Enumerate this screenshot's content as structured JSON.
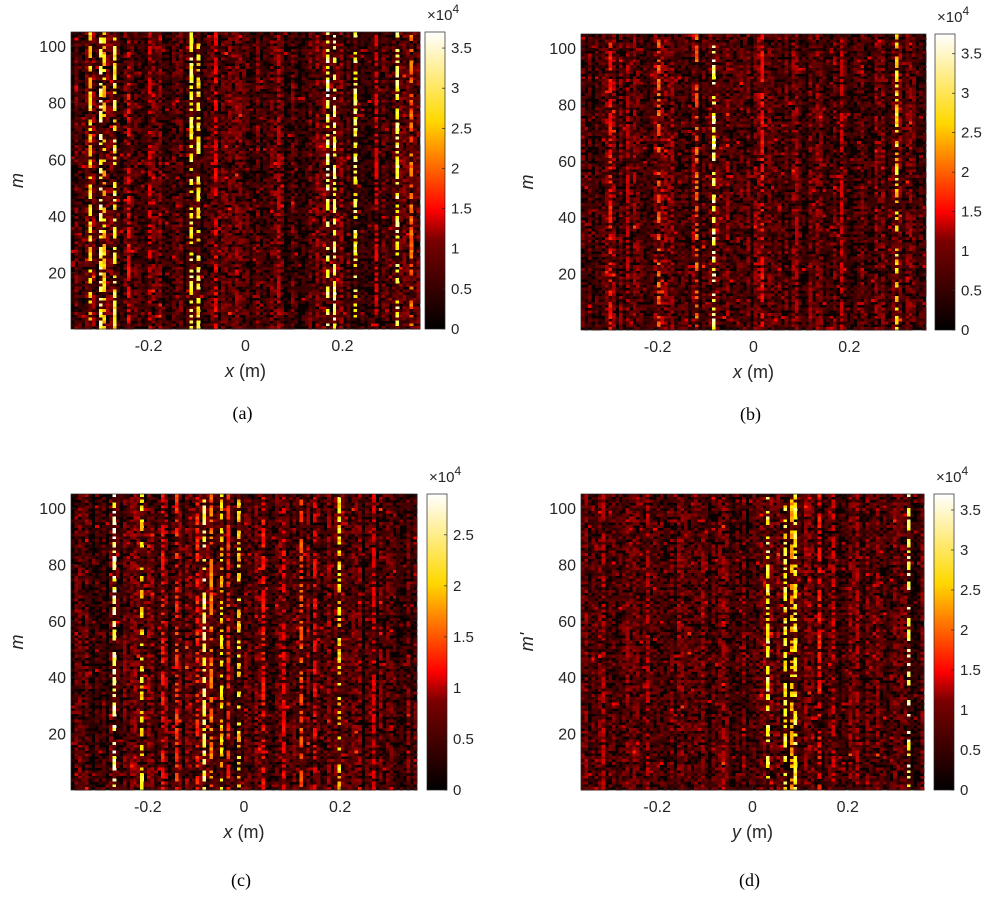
{
  "chart_data": [
    {
      "type": "heatmap",
      "caption": "(a)",
      "xlabel_var": "x",
      "xlabel_unit": " (m)",
      "ylabel": "m",
      "xlim": [
        -0.36,
        0.36
      ],
      "ylim": [
        0,
        105
      ],
      "xticks": [
        -0.2,
        0,
        0.2
      ],
      "xtick_labels": [
        "-0.2",
        "0",
        "0.2"
      ],
      "yticks": [
        20,
        40,
        60,
        80,
        100
      ],
      "ytick_labels": [
        "20",
        "40",
        "60",
        "80",
        "100"
      ],
      "colorbar": {
        "range": [
          0,
          3.7
        ],
        "ticks": [
          0,
          0.5,
          1,
          1.5,
          2,
          2.5,
          3,
          3.5
        ],
        "tick_labels": [
          "0",
          "0.5",
          "1",
          "1.5",
          "2",
          "2.5",
          "3",
          "3.5"
        ],
        "multiplier_base": "×10",
        "multiplier_exp": "4"
      },
      "colormap": "hot",
      "grid": false,
      "bright_columns": [
        {
          "x": -0.32,
          "level": 3.0
        },
        {
          "x": -0.3,
          "level": 3.6
        },
        {
          "x": -0.29,
          "level": 2.8
        },
        {
          "x": -0.27,
          "level": 3.3
        },
        {
          "x": -0.11,
          "level": 3.4
        },
        {
          "x": -0.1,
          "level": 3.2
        },
        {
          "x": 0.17,
          "level": 3.7
        },
        {
          "x": 0.18,
          "level": 3.6
        },
        {
          "x": 0.23,
          "level": 3.4
        },
        {
          "x": 0.31,
          "level": 3.5
        },
        {
          "x": 0.34,
          "level": 2.2
        },
        {
          "x": -0.24,
          "level": 1.6
        },
        {
          "x": -0.2,
          "level": 1.4
        },
        {
          "x": -0.06,
          "level": 1.5
        },
        {
          "x": 0.07,
          "level": 1.2
        },
        {
          "x": 0.27,
          "level": 1.4
        }
      ]
    },
    {
      "type": "heatmap",
      "caption": "(b)",
      "xlabel_var": "x",
      "xlabel_unit": " (m)",
      "ylabel": "m",
      "xlim": [
        -0.36,
        0.36
      ],
      "ylim": [
        0,
        105
      ],
      "xticks": [
        -0.2,
        0,
        0.2
      ],
      "xtick_labels": [
        "-0.2",
        "0",
        "0.2"
      ],
      "yticks": [
        20,
        40,
        60,
        80,
        100
      ],
      "ytick_labels": [
        "20",
        "40",
        "60",
        "80",
        "100"
      ],
      "colorbar": {
        "range": [
          0,
          3.75
        ],
        "ticks": [
          0,
          0.5,
          1,
          1.5,
          2,
          2.5,
          3,
          3.5
        ],
        "tick_labels": [
          "0",
          "0.5",
          "1",
          "1.5",
          "2",
          "2.5",
          "3",
          "3.5"
        ],
        "multiplier_base": "×10",
        "multiplier_exp": "4"
      },
      "colormap": "hot",
      "grid": false,
      "bright_columns": [
        {
          "x": -0.3,
          "level": 1.7
        },
        {
          "x": -0.2,
          "level": 2.2
        },
        {
          "x": -0.12,
          "level": 2.2
        },
        {
          "x": -0.08,
          "level": 3.75
        },
        {
          "x": 0.02,
          "level": 1.6
        },
        {
          "x": 0.18,
          "level": 1.3
        },
        {
          "x": 0.3,
          "level": 3.1
        },
        {
          "x": -0.26,
          "level": 1.2
        },
        {
          "x": 0.09,
          "level": 1.1
        }
      ]
    },
    {
      "type": "heatmap",
      "caption": "(c)",
      "xlabel_var": "x",
      "xlabel_unit": " (m)",
      "ylabel": "m",
      "xlim": [
        -0.36,
        0.36
      ],
      "ylim": [
        0,
        105
      ],
      "xticks": [
        -0.2,
        0,
        0.2
      ],
      "xtick_labels": [
        "-0.2",
        "0",
        "0.2"
      ],
      "yticks": [
        20,
        40,
        60,
        80,
        100
      ],
      "ytick_labels": [
        "20",
        "40",
        "60",
        "80",
        "100"
      ],
      "colorbar": {
        "range": [
          0,
          2.9
        ],
        "ticks": [
          0,
          0.5,
          1,
          1.5,
          2,
          2.5
        ],
        "tick_labels": [
          "0",
          "0.5",
          "1",
          "1.5",
          "2",
          "2.5"
        ],
        "multiplier_base": "×10",
        "multiplier_exp": "4"
      },
      "colormap": "hot",
      "grid": false,
      "bright_columns": [
        {
          "x": -0.27,
          "level": 2.9
        },
        {
          "x": -0.21,
          "level": 2.4
        },
        {
          "x": -0.17,
          "level": 1.3
        },
        {
          "x": -0.14,
          "level": 1.5
        },
        {
          "x": -0.1,
          "level": 1.4
        },
        {
          "x": -0.08,
          "level": 2.8
        },
        {
          "x": -0.07,
          "level": 1.8
        },
        {
          "x": -0.05,
          "level": 2.3
        },
        {
          "x": -0.03,
          "level": 1.4
        },
        {
          "x": -0.01,
          "level": 2.3
        },
        {
          "x": 0.04,
          "level": 1.3
        },
        {
          "x": 0.08,
          "level": 1.2
        },
        {
          "x": 0.12,
          "level": 1.6
        },
        {
          "x": 0.15,
          "level": 1.2
        },
        {
          "x": 0.2,
          "level": 2.4
        },
        {
          "x": 0.27,
          "level": 1.1
        }
      ]
    },
    {
      "type": "heatmap",
      "caption": "(d)",
      "xlabel_var": "y",
      "xlabel_unit": " (m)",
      "ylabel": "m'",
      "xlim": [
        -0.36,
        0.36
      ],
      "ylim": [
        0,
        105
      ],
      "xticks": [
        -0.2,
        0,
        0.2
      ],
      "xtick_labels": [
        "-0.2",
        "0",
        "0.2"
      ],
      "yticks": [
        20,
        40,
        60,
        80,
        100
      ],
      "ytick_labels": [
        "20",
        "40",
        "60",
        "80",
        "100"
      ],
      "colorbar": {
        "range": [
          0,
          3.7
        ],
        "ticks": [
          0,
          0.5,
          1,
          1.5,
          2,
          2.5,
          3,
          3.5
        ],
        "tick_labels": [
          "0",
          "0.5",
          "1",
          "1.5",
          "2",
          "2.5",
          "3",
          "3.5"
        ],
        "multiplier_base": "×10",
        "multiplier_exp": "4"
      },
      "colormap": "hot",
      "grid": false,
      "bright_columns": [
        {
          "x": 0.03,
          "level": 3.4
        },
        {
          "x": 0.07,
          "level": 3.2
        },
        {
          "x": 0.08,
          "level": 2.7
        },
        {
          "x": 0.09,
          "level": 3.3
        },
        {
          "x": 0.33,
          "level": 3.6
        },
        {
          "x": -0.31,
          "level": 1.2
        },
        {
          "x": -0.22,
          "level": 1.2
        },
        {
          "x": 0.14,
          "level": 1.7
        },
        {
          "x": 0.17,
          "level": 1.3
        },
        {
          "x": 0.22,
          "level": 1.1
        }
      ]
    }
  ]
}
